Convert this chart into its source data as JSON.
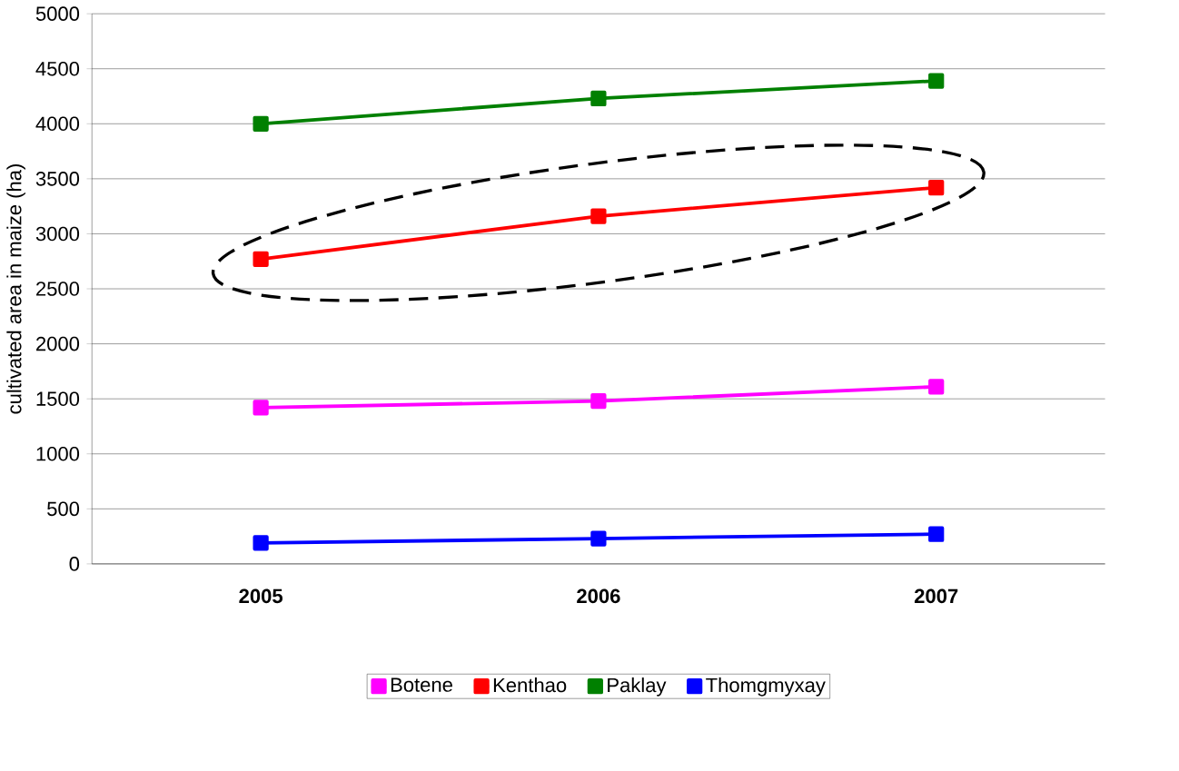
{
  "chart_data": {
    "type": "line",
    "ylabel": "cultivated area in maize (ha)",
    "categories": [
      "2005",
      "2006",
      "2007"
    ],
    "series": [
      {
        "name": "Botene",
        "color": "#ff00ff",
        "values": [
          1420,
          1480,
          1610
        ]
      },
      {
        "name": "Kenthao",
        "color": "#ff0000",
        "values": [
          2770,
          3160,
          3420
        ]
      },
      {
        "name": "Paklay",
        "color": "#008000",
        "values": [
          4000,
          4230,
          4390
        ]
      },
      {
        "name": "Thomgmyxay",
        "color": "#0000ff",
        "values": [
          190,
          230,
          270
        ]
      }
    ],
    "ylim": [
      0,
      5000
    ],
    "yticks": [
      0,
      500,
      1000,
      1500,
      2000,
      2500,
      3000,
      3500,
      4000,
      4500,
      5000
    ],
    "grid": "y",
    "legend": "bottom",
    "marker": "square",
    "line_style": "solid"
  }
}
